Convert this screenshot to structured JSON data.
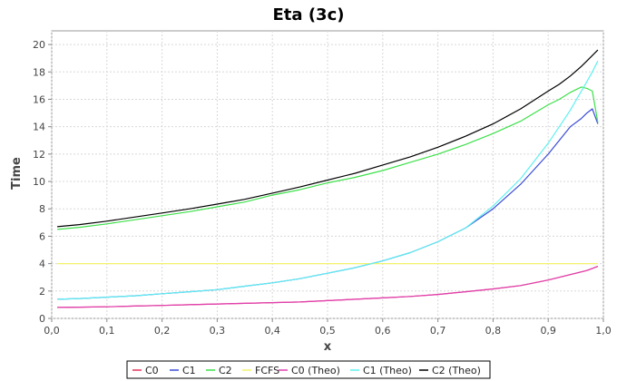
{
  "chart_data": {
    "type": "line",
    "title": "Eta (3c)",
    "xlabel": "x",
    "ylabel": "Time",
    "xlim": [
      0.0,
      1.0
    ],
    "ylim": [
      0,
      21
    ],
    "x_ticks": [
      "0,0",
      "0,1",
      "0,2",
      "0,3",
      "0,4",
      "0,5",
      "0,6",
      "0,7",
      "0,8",
      "0,9",
      "1,0"
    ],
    "y_ticks": [
      "0",
      "2",
      "4",
      "6",
      "8",
      "10",
      "12",
      "14",
      "16",
      "18",
      "20"
    ],
    "grid": true,
    "legend_position": "bottom",
    "x": [
      0.01,
      0.05,
      0.1,
      0.15,
      0.2,
      0.25,
      0.3,
      0.35,
      0.4,
      0.45,
      0.5,
      0.55,
      0.6,
      0.65,
      0.7,
      0.75,
      0.8,
      0.85,
      0.9,
      0.92,
      0.94,
      0.96,
      0.97,
      0.98,
      0.99
    ],
    "series": [
      {
        "name": "C0",
        "color": "#e8325a",
        "values": [
          0.8,
          0.82,
          0.85,
          0.9,
          0.95,
          1.0,
          1.05,
          1.1,
          1.15,
          1.2,
          1.3,
          1.4,
          1.5,
          1.6,
          1.75,
          1.95,
          2.15,
          2.4,
          2.8,
          3.0,
          3.2,
          3.4,
          3.5,
          3.65,
          3.8
        ]
      },
      {
        "name": "C1",
        "color": "#3a4cd6",
        "values": [
          1.4,
          1.45,
          1.55,
          1.65,
          1.8,
          1.95,
          2.1,
          2.35,
          2.6,
          2.9,
          3.3,
          3.7,
          4.2,
          4.8,
          5.6,
          6.6,
          8.0,
          9.8,
          12.0,
          13.0,
          14.0,
          14.6,
          15.0,
          15.3,
          14.2
        ]
      },
      {
        "name": "C2",
        "color": "#3ee04a",
        "values": [
          6.5,
          6.65,
          6.9,
          7.2,
          7.5,
          7.8,
          8.15,
          8.5,
          9.0,
          9.4,
          9.9,
          10.3,
          10.8,
          11.4,
          12.0,
          12.7,
          13.5,
          14.4,
          15.6,
          16.0,
          16.5,
          16.9,
          16.8,
          16.6,
          14.3
        ]
      },
      {
        "name": "FCFS",
        "color": "#f2f26a",
        "values": [
          4.0,
          4.0,
          4.0,
          4.0,
          4.0,
          4.0,
          4.0,
          4.0,
          4.0,
          4.0,
          4.0,
          4.0,
          4.0,
          4.0,
          4.0,
          4.0,
          4.0,
          4.0,
          4.0,
          4.0,
          4.0,
          4.0,
          4.0,
          4.0,
          4.0
        ]
      },
      {
        "name": "C0 (Theo)",
        "color": "#e040b0",
        "values": [
          0.8,
          0.82,
          0.85,
          0.9,
          0.95,
          1.0,
          1.05,
          1.1,
          1.15,
          1.2,
          1.3,
          1.4,
          1.5,
          1.6,
          1.75,
          1.95,
          2.15,
          2.4,
          2.8,
          3.0,
          3.2,
          3.4,
          3.5,
          3.65,
          3.8
        ]
      },
      {
        "name": "C1 (Theo)",
        "color": "#5ef0f0",
        "values": [
          1.4,
          1.45,
          1.55,
          1.65,
          1.8,
          1.95,
          2.1,
          2.35,
          2.6,
          2.9,
          3.3,
          3.7,
          4.2,
          4.8,
          5.6,
          6.6,
          8.2,
          10.2,
          12.8,
          14.0,
          15.2,
          16.6,
          17.3,
          18.0,
          18.8
        ]
      },
      {
        "name": "C2 (Theo)",
        "color": "#000000",
        "values": [
          6.7,
          6.85,
          7.1,
          7.4,
          7.7,
          8.0,
          8.35,
          8.7,
          9.15,
          9.6,
          10.1,
          10.6,
          11.2,
          11.8,
          12.5,
          13.3,
          14.2,
          15.3,
          16.6,
          17.1,
          17.7,
          18.4,
          18.8,
          19.2,
          19.6
        ]
      }
    ]
  }
}
